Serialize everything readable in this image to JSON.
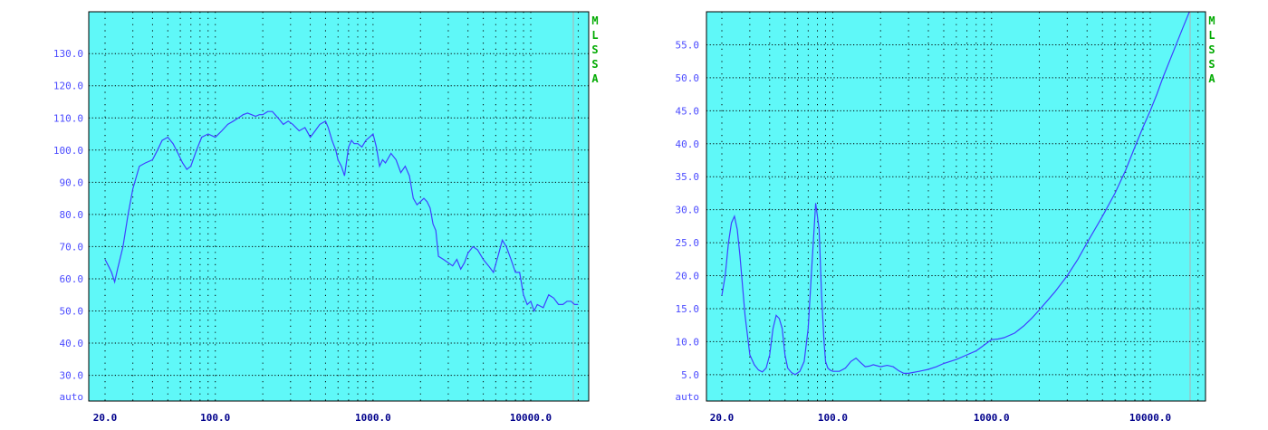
{
  "colors": {
    "plot_bg": "#5ff8f8",
    "curve": "#4040ff",
    "tick_text": "#4b4bff",
    "x_tick_text": "#00008b",
    "side_label": "#00aa00",
    "grid": "#000000"
  },
  "side_label": "MLSSA",
  "chart_data": [
    {
      "type": "line",
      "title": "",
      "xlabel": "",
      "ylabel": "",
      "x_scale": "log",
      "xlim": [
        17.5,
        25000
      ],
      "ylim": [
        22,
        143
      ],
      "grid": true,
      "y_ticks": [
        "130.0",
        "120.0",
        "110.0",
        "100.0",
        "90.0",
        "80.0",
        "70.0",
        "60.0",
        "50.0",
        "40.0",
        "30.0"
      ],
      "y_tick_values": [
        130,
        120,
        110,
        100,
        90,
        80,
        70,
        60,
        50,
        40,
        30
      ],
      "y_bottom_label": "auto",
      "x_ticks": [
        "20.0",
        "100.0",
        "1000.0",
        "10000.0"
      ],
      "x_tick_values": [
        20,
        100,
        1000,
        10000
      ],
      "series": [
        {
          "x": [
            20,
            21,
            22,
            23,
            24,
            26,
            28,
            30,
            33,
            36,
            40,
            43,
            46,
            50,
            54,
            58,
            62,
            66,
            70,
            76,
            82,
            90,
            100,
            110,
            120,
            130,
            140,
            150,
            160,
            170,
            180,
            190,
            200,
            215,
            230,
            250,
            270,
            290,
            310,
            340,
            370,
            400,
            430,
            460,
            500,
            520,
            550,
            580,
            600,
            630,
            660,
            700,
            730,
            760,
            800,
            850,
            900,
            950,
            1000,
            1050,
            1100,
            1150,
            1200,
            1300,
            1400,
            1500,
            1600,
            1700,
            1800,
            1900,
            2000,
            2100,
            2200,
            2300,
            2400,
            2500,
            2600,
            2800,
            3000,
            3200,
            3400,
            3600,
            3800,
            4000,
            4300,
            4600,
            5000,
            5400,
            5800,
            6200,
            6600,
            7000,
            7500,
            8000,
            8500,
            9000,
            9500,
            10000,
            10500,
            11000,
            12000,
            13000,
            14000,
            15000,
            16000,
            17000,
            18000,
            19000,
            20000
          ],
          "y": [
            66,
            64,
            62,
            59,
            63,
            70,
            80,
            88,
            95,
            96,
            97,
            100,
            103,
            104,
            102,
            99,
            96,
            94,
            95,
            100,
            104,
            105,
            104,
            106,
            108,
            109,
            110,
            111,
            111.5,
            111,
            110.5,
            111,
            111,
            112,
            112,
            110,
            108,
            109,
            108,
            106,
            107,
            104,
            106,
            108,
            109,
            107,
            103,
            100,
            97,
            95,
            92,
            101,
            103,
            102,
            102,
            101,
            103,
            104,
            105,
            101,
            95,
            97,
            96,
            99,
            97,
            93,
            95,
            92,
            85,
            83,
            84,
            85,
            84,
            82,
            77,
            75,
            67,
            66,
            65,
            64,
            66,
            63,
            65,
            68,
            70,
            69,
            66,
            64,
            62,
            67,
            72,
            70,
            66,
            62,
            62,
            55,
            52,
            53,
            50,
            52,
            51,
            55,
            54,
            52,
            52,
            53,
            53,
            52,
            52
          ]
        }
      ]
    },
    {
      "type": "line",
      "title": "",
      "xlabel": "",
      "ylabel": "",
      "x_scale": "log",
      "xlim": [
        17.5,
        25000
      ],
      "ylim": [
        1,
        60
      ],
      "grid": true,
      "y_ticks": [
        "55.0",
        "50.0",
        "45.0",
        "40.0",
        "35.0",
        "30.0",
        "25.0",
        "20.0",
        "15.0",
        "10.0",
        "5.0"
      ],
      "y_tick_values": [
        55,
        50,
        45,
        40,
        35,
        30,
        25,
        20,
        15,
        10,
        5
      ],
      "y_bottom_label": "auto",
      "x_ticks": [
        "20.0",
        "100.0",
        "1000.0",
        "10000.0"
      ],
      "x_tick_values": [
        20,
        100,
        1000,
        10000
      ],
      "series": [
        {
          "x": [
            20,
            21,
            22,
            23,
            24,
            25,
            26,
            28,
            30,
            32,
            34,
            36,
            38,
            40,
            42,
            44,
            46,
            48,
            50,
            52,
            55,
            58,
            62,
            66,
            70,
            74,
            78,
            82,
            85,
            88,
            90,
            93,
            96,
            100,
            110,
            120,
            130,
            140,
            150,
            160,
            170,
            180,
            200,
            220,
            240,
            260,
            280,
            300,
            350,
            400,
            450,
            500,
            600,
            700,
            800,
            900,
            1000,
            1100,
            1200,
            1400,
            1600,
            1800,
            2000,
            2500,
            3000,
            3500,
            4000,
            5000,
            6000,
            7000,
            8000,
            9000,
            10000,
            11000,
            12000,
            14000,
            16000,
            18000,
            20000
          ],
          "y": [
            17,
            20,
            25,
            28,
            29,
            27,
            23,
            14,
            8,
            6.5,
            5.7,
            5.4,
            6,
            8,
            12,
            14,
            13.5,
            12,
            8,
            6,
            5.3,
            5,
            5.5,
            7,
            12,
            22,
            31,
            27,
            17,
            10,
            7,
            6,
            5.7,
            5.5,
            5.5,
            6,
            7,
            7.5,
            6.8,
            6.2,
            6.3,
            6.5,
            6.2,
            6.4,
            6.2,
            5.6,
            5.2,
            5.2,
            5.5,
            5.8,
            6.2,
            6.7,
            7.3,
            8,
            8.6,
            9.5,
            10.3,
            10.4,
            10.6,
            11.3,
            12.4,
            13.6,
            14.8,
            17.5,
            20,
            22.5,
            25,
            29,
            32.5,
            36,
            39.5,
            42.5,
            45,
            47.5,
            50,
            54,
            57.5,
            60.5,
            63
          ]
        }
      ]
    }
  ]
}
